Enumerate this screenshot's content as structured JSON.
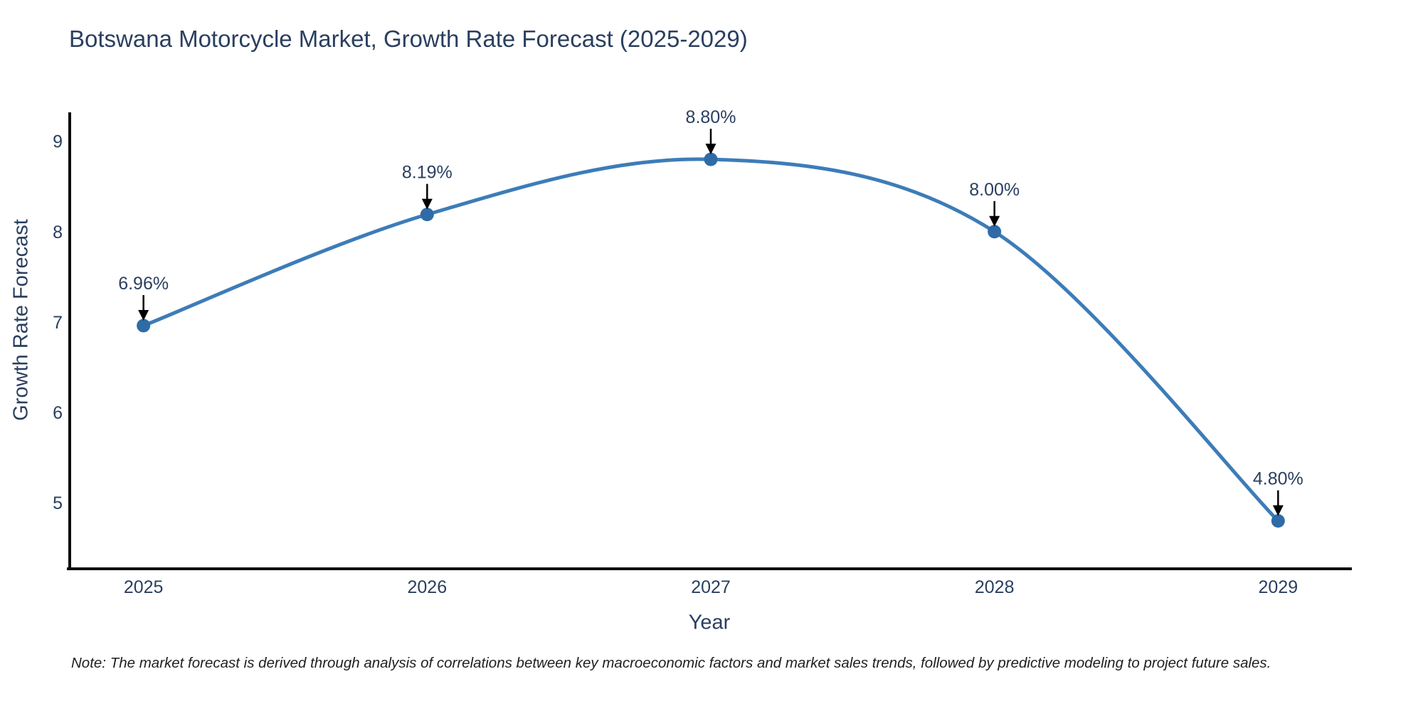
{
  "title": "Botswana Motorcycle Market, Growth Rate Forecast (2025-2029)",
  "note": "Note: The market forecast is derived through analysis of correlations between key macroeconomic factors and market sales trends, followed by predictive modeling to project future sales.",
  "chart_data": {
    "type": "line",
    "title": "Botswana Motorcycle Market, Growth Rate Forecast (2025-2029)",
    "xlabel": "Year",
    "ylabel": "Growth Rate Forecast",
    "x": [
      2025,
      2026,
      2027,
      2028,
      2029
    ],
    "values": [
      6.96,
      8.19,
      8.8,
      8.0,
      4.8
    ],
    "point_labels": [
      "6.96%",
      "8.19%",
      "8.80%",
      "8.00%",
      "4.80%"
    ],
    "xticks": [
      "2025",
      "2026",
      "2027",
      "2028",
      "2029"
    ],
    "yticks": [
      5,
      6,
      7,
      8,
      9
    ],
    "xlim": [
      2024.74,
      2029.26
    ],
    "ylim": [
      4.27,
      9.32
    ],
    "line_shape": "spline",
    "grid": false,
    "legend": "none",
    "colors": {
      "line": "#3d7cb8",
      "marker": "#2f6ba6",
      "text": "#2a3f5f",
      "axis": "#0d0d0d",
      "arrow": "#000000",
      "note_text": "#1f1f1f",
      "background": "#ffffff"
    }
  }
}
